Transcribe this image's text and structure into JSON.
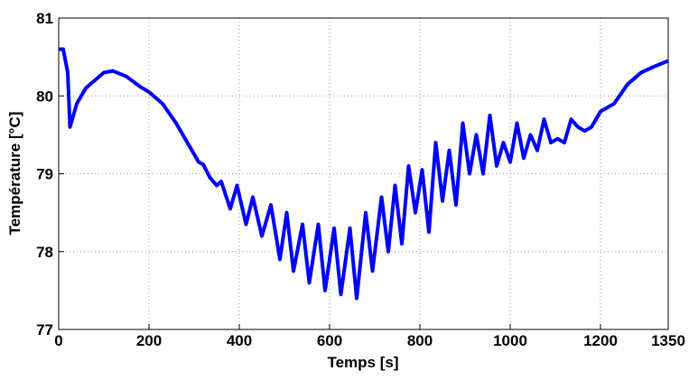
{
  "chart_data": {
    "type": "line",
    "xlabel": "Temps [s]",
    "ylabel": "Température [°C]",
    "x": [
      0,
      10,
      20,
      25,
      40,
      60,
      80,
      100,
      120,
      150,
      180,
      200,
      230,
      260,
      290,
      310,
      320,
      335,
      350,
      360,
      380,
      395,
      415,
      430,
      450,
      470,
      490,
      505,
      520,
      540,
      555,
      575,
      590,
      610,
      625,
      645,
      660,
      680,
      695,
      715,
      730,
      745,
      760,
      775,
      790,
      805,
      820,
      835,
      850,
      865,
      880,
      895,
      910,
      925,
      940,
      955,
      970,
      985,
      1000,
      1015,
      1030,
      1045,
      1060,
      1075,
      1090,
      1105,
      1120,
      1135,
      1150,
      1165,
      1180,
      1200,
      1230,
      1260,
      1290,
      1320,
      1350
    ],
    "series": [
      {
        "name": "Température",
        "color": "#0000ff",
        "values": [
          80.6,
          80.6,
          80.3,
          79.6,
          79.9,
          80.1,
          80.2,
          80.3,
          80.32,
          80.25,
          80.12,
          80.05,
          79.9,
          79.65,
          79.35,
          79.15,
          79.12,
          78.95,
          78.85,
          78.9,
          78.55,
          78.85,
          78.35,
          78.7,
          78.2,
          78.6,
          77.9,
          78.5,
          77.75,
          78.35,
          77.6,
          78.35,
          77.5,
          78.3,
          77.45,
          78.3,
          77.4,
          78.5,
          77.75,
          78.7,
          78.0,
          78.85,
          78.1,
          79.1,
          78.5,
          79.05,
          78.25,
          79.4,
          78.65,
          79.3,
          78.6,
          79.65,
          79.0,
          79.5,
          79.0,
          79.75,
          79.1,
          79.4,
          79.15,
          79.65,
          79.2,
          79.5,
          79.3,
          79.7,
          79.4,
          79.45,
          79.4,
          79.7,
          79.6,
          79.55,
          79.6,
          79.8,
          79.9,
          80.15,
          80.3,
          80.38,
          80.45
        ]
      }
    ],
    "xlim": [
      0,
      1350
    ],
    "xticks": [
      0,
      200,
      400,
      600,
      800,
      1000,
      1200,
      1350
    ],
    "ylim": [
      77,
      81
    ],
    "yticks": [
      77,
      78,
      79,
      80,
      81
    ],
    "grid": true
  }
}
